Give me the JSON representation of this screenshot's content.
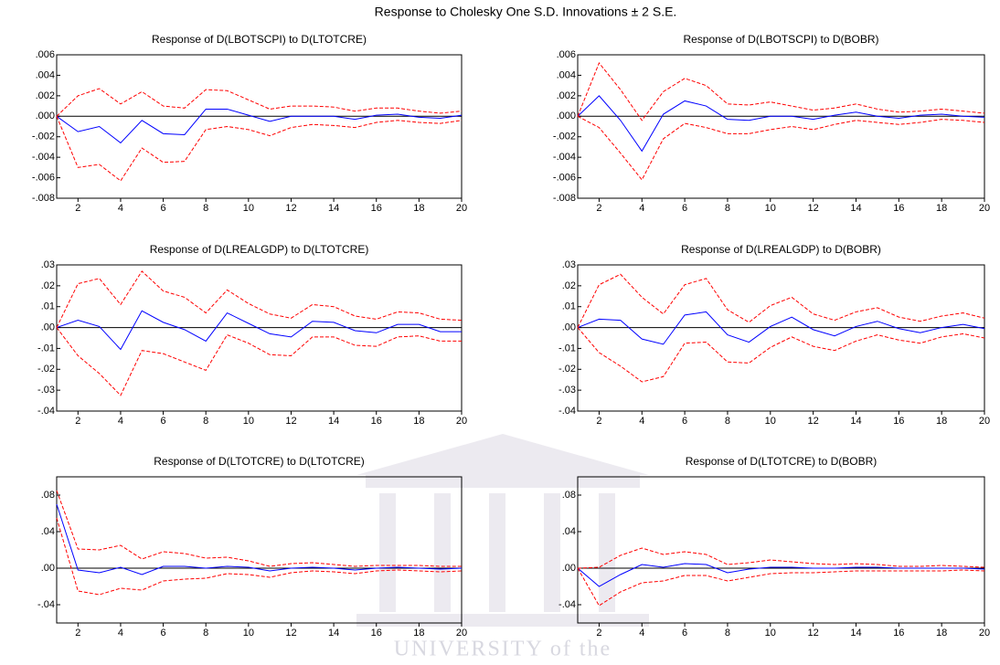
{
  "title": "Response to Cholesky One S.D. Innovations ± 2 S.E.",
  "watermark": "UNIVERSITY of the",
  "chart_data": [
    {
      "type": "line",
      "title": "Response of D(LBOTSCPI) to D(LTOTCRE)",
      "x": [
        1,
        2,
        3,
        4,
        5,
        6,
        7,
        8,
        9,
        10,
        11,
        12,
        13,
        14,
        15,
        16,
        17,
        18,
        19,
        20
      ],
      "xlim": [
        1,
        20
      ],
      "xticks": [
        2,
        4,
        6,
        8,
        10,
        12,
        14,
        16,
        18,
        20
      ],
      "ylim": [
        -0.008,
        0.006
      ],
      "yticks": [
        {
          "value": 0.006,
          "label": ".006"
        },
        {
          "value": 0.004,
          "label": ".004"
        },
        {
          "value": 0.002,
          "label": ".002"
        },
        {
          "value": 0,
          "label": ".000"
        },
        {
          "value": -0.002,
          "label": "-.002"
        },
        {
          "value": -0.004,
          "label": "-.004"
        },
        {
          "value": -0.006,
          "label": "-.006"
        },
        {
          "value": -0.008,
          "label": "-.008"
        }
      ],
      "series": [
        {
          "color": "#0000ff",
          "dashed": false,
          "values": [
            0,
            -0.0015,
            -0.001,
            -0.0026,
            -0.0004,
            -0.0017,
            -0.0018,
            0.0007,
            0.0007,
            0.0001,
            -0.0005,
            0,
            0,
            0,
            -0.0003,
            0.0001,
            0.0002,
            -0.0001,
            -0.0002,
            0.0001
          ]
        },
        {
          "color": "#ff0000",
          "dashed": true,
          "values": [
            0,
            0.002,
            0.0027,
            0.0012,
            0.0024,
            0.001,
            0.0008,
            0.0026,
            0.0025,
            0.0016,
            0.0007,
            0.001,
            0.001,
            0.0009,
            0.0005,
            0.0008,
            0.0008,
            0.0005,
            0.0003,
            0.0005
          ]
        },
        {
          "color": "#ff0000",
          "dashed": true,
          "values": [
            0,
            -0.005,
            -0.0047,
            -0.0063,
            -0.0031,
            -0.0045,
            -0.0044,
            -0.0013,
            -0.001,
            -0.0013,
            -0.0019,
            -0.0011,
            -0.0008,
            -0.0009,
            -0.0011,
            -0.0006,
            -0.0004,
            -0.0006,
            -0.0007,
            -0.0004
          ]
        }
      ]
    },
    {
      "type": "line",
      "title": "Response of D(LBOTSCPI) to D(BOBR)",
      "x": [
        1,
        2,
        3,
        4,
        5,
        6,
        7,
        8,
        9,
        10,
        11,
        12,
        13,
        14,
        15,
        16,
        17,
        18,
        19,
        20
      ],
      "xlim": [
        1,
        20
      ],
      "xticks": [
        2,
        4,
        6,
        8,
        10,
        12,
        14,
        16,
        18,
        20
      ],
      "ylim": [
        -0.008,
        0.006
      ],
      "yticks": [
        {
          "value": 0.006,
          "label": ".006"
        },
        {
          "value": 0.004,
          "label": ".004"
        },
        {
          "value": 0.002,
          "label": ".002"
        },
        {
          "value": 0,
          "label": ".000"
        },
        {
          "value": -0.002,
          "label": "-.002"
        },
        {
          "value": -0.004,
          "label": "-.004"
        },
        {
          "value": -0.006,
          "label": "-.006"
        },
        {
          "value": -0.008,
          "label": "-.008"
        }
      ],
      "series": [
        {
          "color": "#0000ff",
          "dashed": false,
          "values": [
            0,
            0.002,
            -0.0004,
            -0.0034,
            0.0002,
            0.0015,
            0.001,
            -0.0003,
            -0.0004,
            0,
            0,
            -0.0003,
            0.0001,
            0.0004,
            0,
            -0.0002,
            0.0001,
            0.0002,
            0,
            -0.0001
          ]
        },
        {
          "color": "#ff0000",
          "dashed": true,
          "values": [
            0,
            0.0052,
            0.0026,
            -0.0004,
            0.0024,
            0.0037,
            0.003,
            0.0012,
            0.0011,
            0.0014,
            0.001,
            0.0006,
            0.0008,
            0.0012,
            0.0007,
            0.0004,
            0.0005,
            0.0007,
            0.0005,
            0.0003
          ]
        },
        {
          "color": "#ff0000",
          "dashed": true,
          "values": [
            0,
            -0.0011,
            -0.0036,
            -0.0062,
            -0.0022,
            -0.0007,
            -0.0011,
            -0.0017,
            -0.0017,
            -0.0013,
            -0.001,
            -0.0013,
            -0.0008,
            -0.0004,
            -0.0006,
            -0.0008,
            -0.0006,
            -0.0003,
            -0.0004,
            -0.0006
          ]
        }
      ]
    },
    {
      "type": "line",
      "title": "Response of D(LREALGDP) to D(LTOTCRE)",
      "x": [
        1,
        2,
        3,
        4,
        5,
        6,
        7,
        8,
        9,
        10,
        11,
        12,
        13,
        14,
        15,
        16,
        17,
        18,
        19,
        20
      ],
      "xlim": [
        1,
        20
      ],
      "xticks": [
        2,
        4,
        6,
        8,
        10,
        12,
        14,
        16,
        18,
        20
      ],
      "ylim": [
        -0.04,
        0.03
      ],
      "yticks": [
        {
          "value": 0.03,
          "label": ".03"
        },
        {
          "value": 0.02,
          "label": ".02"
        },
        {
          "value": 0.01,
          "label": ".01"
        },
        {
          "value": 0,
          "label": ".00"
        },
        {
          "value": -0.01,
          "label": "-.01"
        },
        {
          "value": -0.02,
          "label": "-.02"
        },
        {
          "value": -0.03,
          "label": "-.03"
        },
        {
          "value": -0.04,
          "label": "-.04"
        }
      ],
      "series": [
        {
          "color": "#0000ff",
          "dashed": false,
          "values": [
            0,
            0.0035,
            0.0005,
            -0.0105,
            0.008,
            0.0025,
            -0.001,
            -0.0065,
            0.007,
            0.002,
            -0.003,
            -0.0045,
            0.003,
            0.0025,
            -0.0015,
            -0.0025,
            0.0015,
            0.0015,
            -0.002,
            -0.002
          ]
        },
        {
          "color": "#ff0000",
          "dashed": true,
          "values": [
            0,
            0.021,
            0.0235,
            0.011,
            0.027,
            0.0175,
            0.0145,
            0.007,
            0.018,
            0.0115,
            0.0065,
            0.0045,
            0.011,
            0.01,
            0.0055,
            0.004,
            0.0075,
            0.007,
            0.004,
            0.0035
          ]
        },
        {
          "color": "#ff0000",
          "dashed": true,
          "values": [
            0,
            -0.0135,
            -0.022,
            -0.0325,
            -0.011,
            -0.0125,
            -0.0165,
            -0.0205,
            -0.0035,
            -0.0075,
            -0.013,
            -0.0135,
            -0.0045,
            -0.0045,
            -0.0085,
            -0.009,
            -0.0045,
            -0.004,
            -0.0065,
            -0.0065
          ]
        }
      ]
    },
    {
      "type": "line",
      "title": "Response of D(LREALGDP) to D(BOBR)",
      "x": [
        1,
        2,
        3,
        4,
        5,
        6,
        7,
        8,
        9,
        10,
        11,
        12,
        13,
        14,
        15,
        16,
        17,
        18,
        19,
        20
      ],
      "xlim": [
        1,
        20
      ],
      "xticks": [
        2,
        4,
        6,
        8,
        10,
        12,
        14,
        16,
        18,
        20
      ],
      "ylim": [
        -0.04,
        0.03
      ],
      "yticks": [
        {
          "value": 0.03,
          "label": ".03"
        },
        {
          "value": 0.02,
          "label": ".02"
        },
        {
          "value": 0.01,
          "label": ".01"
        },
        {
          "value": 0,
          "label": ".00"
        },
        {
          "value": -0.01,
          "label": "-.01"
        },
        {
          "value": -0.02,
          "label": "-.02"
        },
        {
          "value": -0.03,
          "label": "-.03"
        },
        {
          "value": -0.04,
          "label": "-.04"
        }
      ],
      "series": [
        {
          "color": "#0000ff",
          "dashed": false,
          "values": [
            0,
            0.004,
            0.0035,
            -0.0055,
            -0.008,
            0.006,
            0.0075,
            -0.0035,
            -0.007,
            0.0005,
            0.005,
            -0.001,
            -0.004,
            0.0005,
            0.003,
            -0.0005,
            -0.0025,
            0,
            0.0015,
            -0.0005
          ]
        },
        {
          "color": "#ff0000",
          "dashed": true,
          "values": [
            0,
            0.0205,
            0.0255,
            0.0145,
            0.0065,
            0.0205,
            0.0235,
            0.0085,
            0.0025,
            0.0105,
            0.0145,
            0.0065,
            0.0035,
            0.0075,
            0.0095,
            0.005,
            0.003,
            0.0055,
            0.007,
            0.0045
          ]
        },
        {
          "color": "#ff0000",
          "dashed": true,
          "values": [
            0,
            -0.012,
            -0.0185,
            -0.026,
            -0.0235,
            -0.0075,
            -0.007,
            -0.0165,
            -0.017,
            -0.0095,
            -0.0045,
            -0.009,
            -0.011,
            -0.0065,
            -0.0035,
            -0.006,
            -0.0075,
            -0.0045,
            -0.003,
            -0.005
          ]
        }
      ]
    },
    {
      "type": "line",
      "title": "Response of D(LTOTCRE) to D(LTOTCRE)",
      "x": [
        1,
        2,
        3,
        4,
        5,
        6,
        7,
        8,
        9,
        10,
        11,
        12,
        13,
        14,
        15,
        16,
        17,
        18,
        19,
        20
      ],
      "xlim": [
        1,
        20
      ],
      "xticks": [
        2,
        4,
        6,
        8,
        10,
        12,
        14,
        16,
        18,
        20
      ],
      "ylim": [
        -0.06,
        0.1
      ],
      "yticks": [
        {
          "value": 0.08,
          "label": ".08"
        },
        {
          "value": 0.04,
          "label": ".04"
        },
        {
          "value": 0,
          "label": ".00"
        },
        {
          "value": -0.04,
          "label": "-.04"
        }
      ],
      "series": [
        {
          "color": "#0000ff",
          "dashed": false,
          "values": [
            0.07,
            -0.002,
            -0.005,
            0.001,
            -0.007,
            0.002,
            0.002,
            0,
            0.002,
            0.001,
            -0.003,
            0,
            0.001,
            0,
            -0.002,
            0,
            0.001,
            0,
            -0.001,
            0
          ]
        },
        {
          "color": "#ff0000",
          "dashed": true,
          "values": [
            0.085,
            0.021,
            0.02,
            0.025,
            0.01,
            0.018,
            0.016,
            0.011,
            0.012,
            0.008,
            0.002,
            0.005,
            0.006,
            0.004,
            0.002,
            0.003,
            0.003,
            0.003,
            0.002,
            0.002
          ]
        },
        {
          "color": "#ff0000",
          "dashed": true,
          "values": [
            0.055,
            -0.025,
            -0.029,
            -0.022,
            -0.024,
            -0.014,
            -0.012,
            -0.011,
            -0.006,
            -0.007,
            -0.01,
            -0.005,
            -0.003,
            -0.004,
            -0.006,
            -0.003,
            -0.002,
            -0.003,
            -0.004,
            -0.003
          ]
        }
      ]
    },
    {
      "type": "line",
      "title": "Response of D(LTOTCRE) to D(BOBR)",
      "x": [
        1,
        2,
        3,
        4,
        5,
        6,
        7,
        8,
        9,
        10,
        11,
        12,
        13,
        14,
        15,
        16,
        17,
        18,
        19,
        20
      ],
      "xlim": [
        1,
        20
      ],
      "xticks": [
        2,
        4,
        6,
        8,
        10,
        12,
        14,
        16,
        18,
        20
      ],
      "ylim": [
        -0.06,
        0.1
      ],
      "yticks": [
        {
          "value": 0.08,
          "label": ".08"
        },
        {
          "value": 0.04,
          "label": ".04"
        },
        {
          "value": 0,
          "label": ".00"
        },
        {
          "value": -0.04,
          "label": "-.04"
        }
      ],
      "series": [
        {
          "color": "#0000ff",
          "dashed": false,
          "values": [
            0,
            -0.02,
            -0.007,
            0.004,
            0.001,
            0.005,
            0.004,
            -0.005,
            -0.001,
            0.001,
            0.001,
            0,
            0,
            0.001,
            0.001,
            0,
            0,
            0,
            0,
            -0.001
          ]
        },
        {
          "color": "#ff0000",
          "dashed": true,
          "values": [
            0,
            0.001,
            0.014,
            0.022,
            0.015,
            0.018,
            0.015,
            0.004,
            0.006,
            0.009,
            0.007,
            0.005,
            0.004,
            0.005,
            0.004,
            0.002,
            0.002,
            0.003,
            0.002,
            0.001
          ]
        },
        {
          "color": "#ff0000",
          "dashed": true,
          "values": [
            0,
            -0.041,
            -0.026,
            -0.016,
            -0.014,
            -0.008,
            -0.008,
            -0.014,
            -0.01,
            -0.006,
            -0.005,
            -0.005,
            -0.004,
            -0.003,
            -0.003,
            -0.003,
            -0.003,
            -0.003,
            -0.002,
            -0.003
          ]
        }
      ]
    }
  ]
}
